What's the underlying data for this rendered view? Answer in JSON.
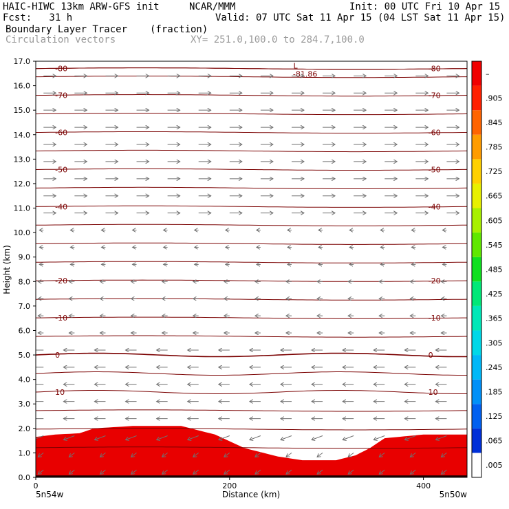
{
  "header": {
    "model": "HAIC-HIWC 13km ARW-GFS init",
    "agency": "NCAR/MMM",
    "init": "Init: 00 UTC Fri 10 Apr 15",
    "fcst": "Fcst:   31 h",
    "valid": "Valid: 07 UTC Sat 11 Apr 15 (04 LST Sat 11 Apr 15)",
    "field": "Boundary Layer Tracer",
    "units": "(fraction)",
    "overlay": "Circulation vectors",
    "xy": "XY= 251.0,100.0 to 284.7,100.0"
  },
  "chart_data": {
    "type": "heatmap",
    "xlabel": "Distance (km)",
    "ylabel": "Height (km)",
    "xlim": [
      0,
      445
    ],
    "ylim": [
      0,
      17
    ],
    "xticks": [
      "0",
      "200",
      "400"
    ],
    "yticks": [
      "0.0",
      "1.0",
      "2.0",
      "3.0",
      "4.0",
      "5.0",
      "6.0",
      "7.0",
      "8.0",
      "9.0",
      "10.0",
      "11.0",
      "12.0",
      "13.0",
      "14.0",
      "15.0",
      "16.0",
      "17.0"
    ],
    "x_endpoints": [
      "5n54w",
      "5n50w"
    ],
    "colorbar": {
      "labels": [
        ".005",
        ".065",
        ".125",
        ".185",
        ".245",
        ".305",
        ".365",
        ".425",
        ".485",
        ".545",
        ".605",
        ".665",
        ".725",
        ".785",
        ".845",
        ".905"
      ],
      "top_label": "–",
      "colors": [
        "#ffffff",
        "#0030d8",
        "#0060f0",
        "#0090f8",
        "#00b8f8",
        "#00d8e8",
        "#00e8b8",
        "#00e878",
        "#10e020",
        "#60e800",
        "#a8f000",
        "#e8f000",
        "#ffd000",
        "#ff9c00",
        "#ff6400",
        "#ff2000",
        "#f00000"
      ]
    },
    "tracer_top_km": [
      [
        0,
        1.65
      ],
      [
        20,
        1.75
      ],
      [
        45,
        1.8
      ],
      [
        60,
        2.0
      ],
      [
        100,
        2.1
      ],
      [
        150,
        2.1
      ],
      [
        185,
        1.75
      ],
      [
        215,
        1.2
      ],
      [
        250,
        0.85
      ],
      [
        275,
        0.7
      ],
      [
        310,
        0.7
      ],
      [
        330,
        0.9
      ],
      [
        345,
        1.2
      ],
      [
        360,
        1.6
      ],
      [
        400,
        1.75
      ],
      [
        445,
        1.75
      ]
    ],
    "temperature_contours_C": [
      {
        "value": 10,
        "label": "10"
      },
      {
        "value": 0,
        "label": "0"
      },
      {
        "value": -10,
        "label": "-10"
      },
      {
        "value": -20,
        "label": "-20"
      },
      {
        "value": -40,
        "label": "-40"
      },
      {
        "value": -50,
        "label": "-50"
      },
      {
        "value": -60,
        "label": "-60"
      },
      {
        "value": -70,
        "label": "-70"
      },
      {
        "value": -80,
        "label": "-80"
      }
    ],
    "low_marker": {
      "symbol": "L",
      "value": "-81.86"
    }
  }
}
